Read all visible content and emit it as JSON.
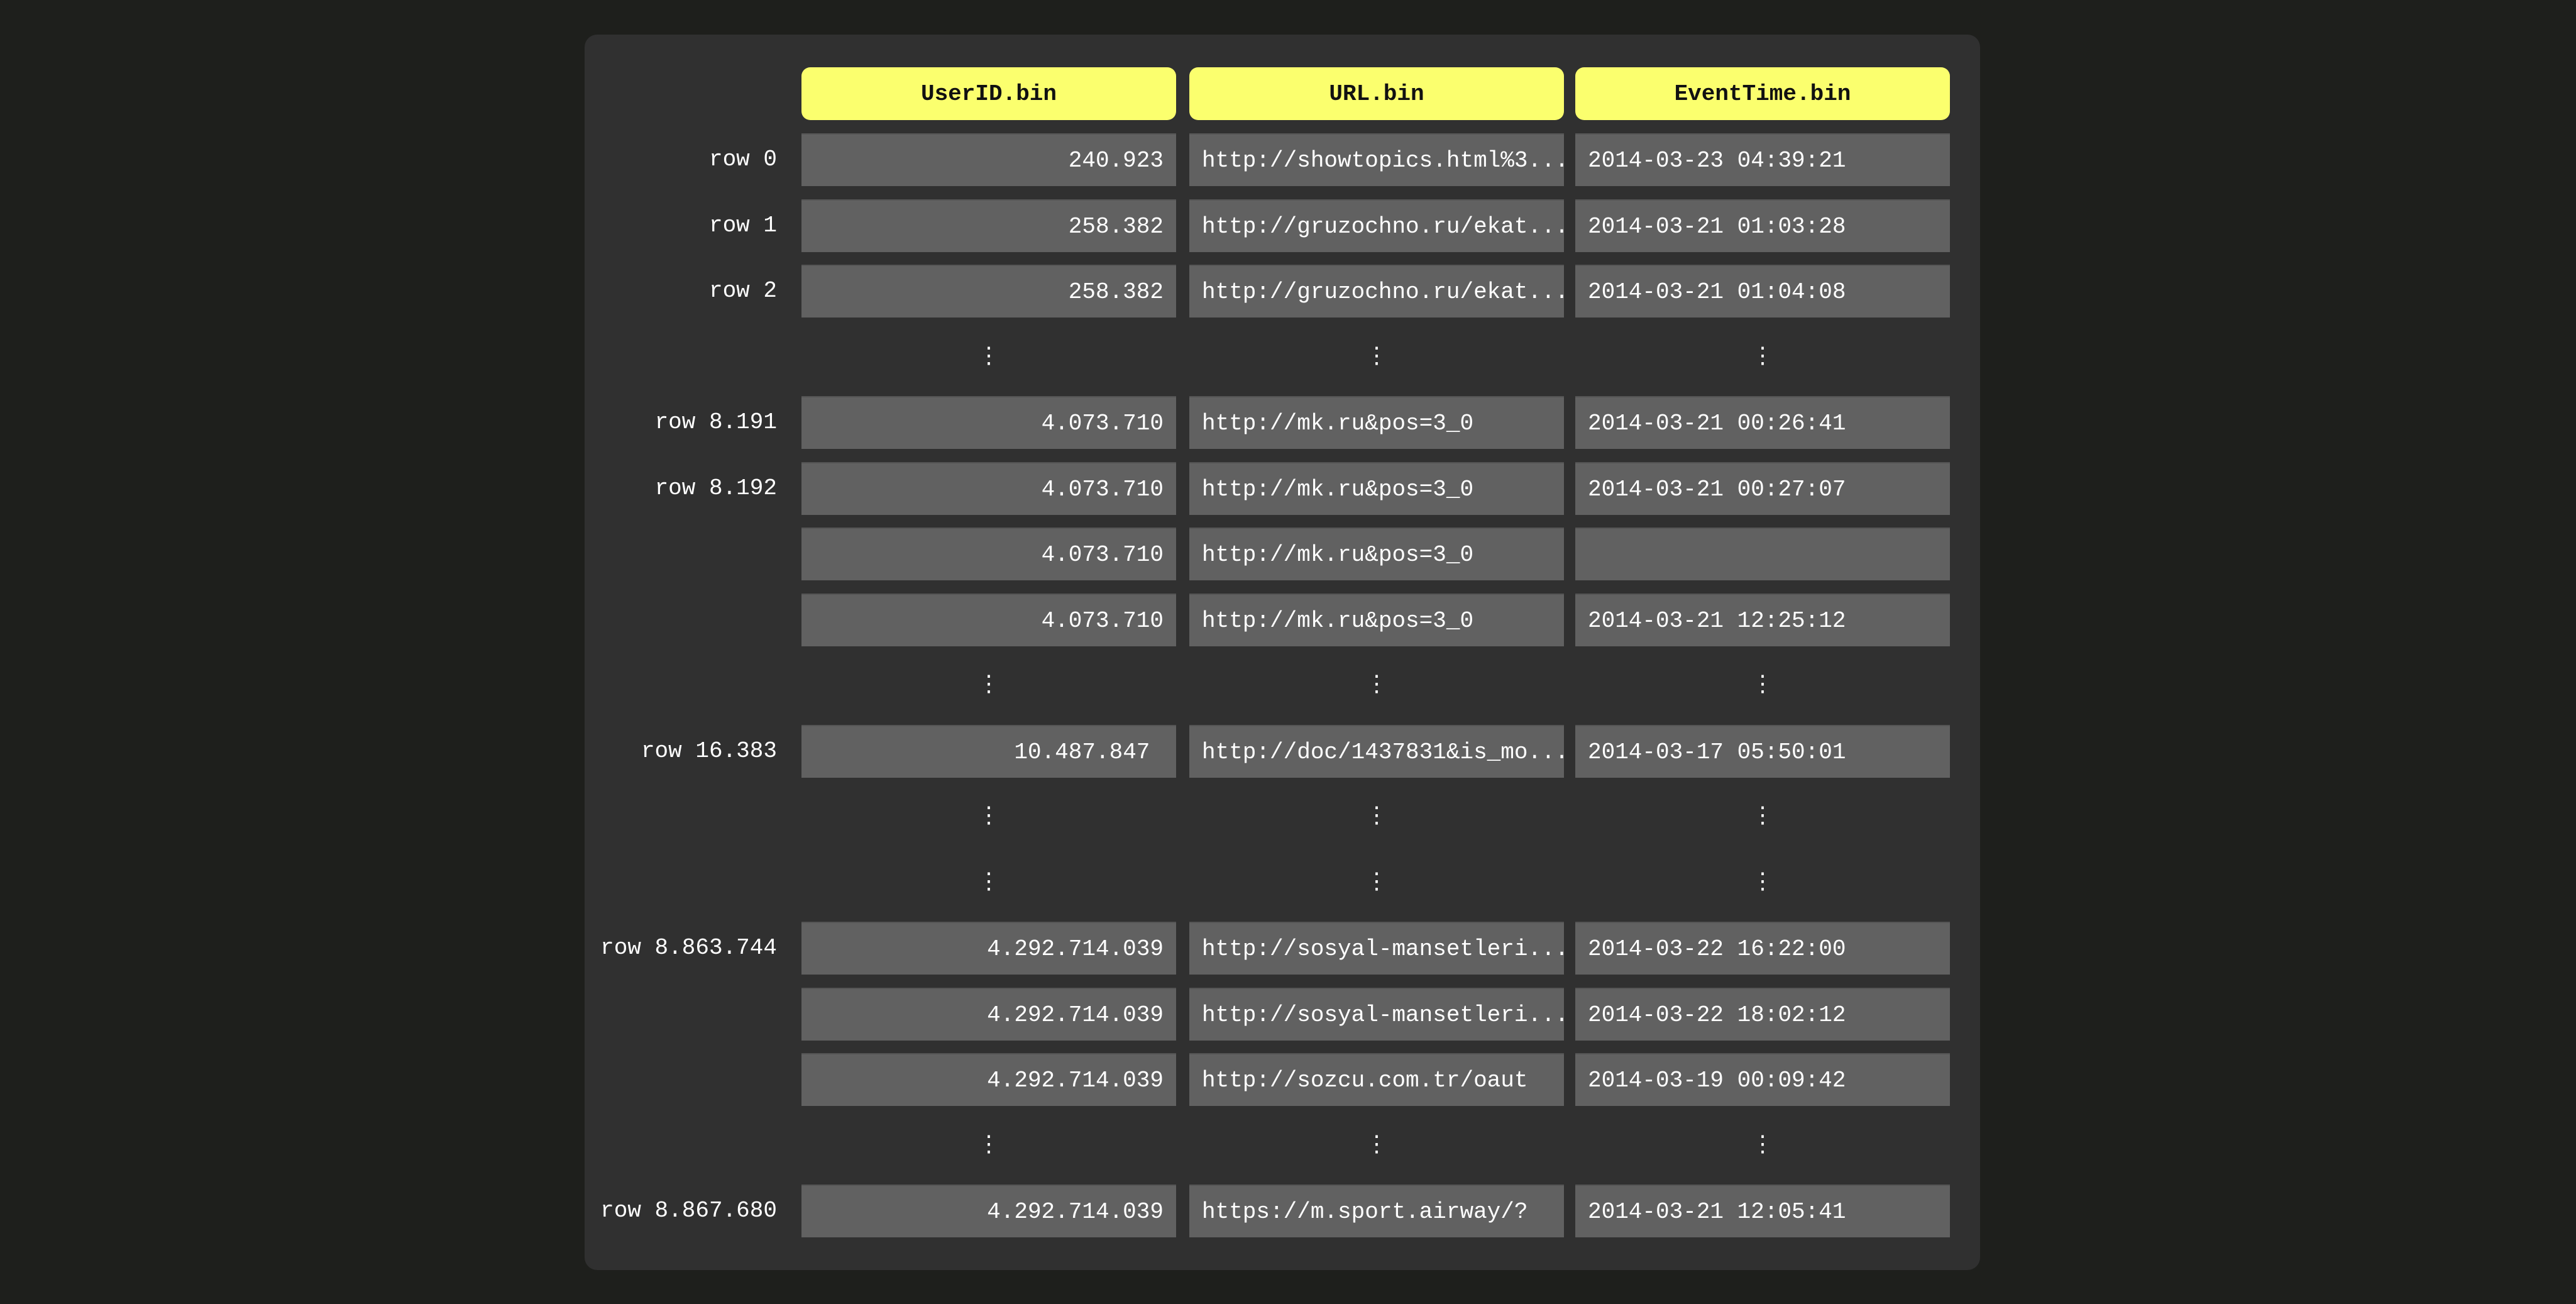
{
  "colors": {
    "background": "#1e1f1c",
    "panel": "#303030",
    "header": "#fbff6e",
    "cell": "#616161"
  },
  "columns": [
    "UserID.bin",
    "URL.bin",
    "EventTime.bin"
  ],
  "ellipsis": "⋮",
  "rows": [
    {
      "label": "row 0",
      "cells": [
        "240.923",
        "http://showtopics.html%3...",
        "2014-03-23 04:39:21"
      ]
    },
    {
      "label": "row 1",
      "cells": [
        "258.382",
        "http://gruzochno.ru/ekat...",
        "2014-03-21 01:03:28"
      ]
    },
    {
      "label": "row 2",
      "cells": [
        "258.382",
        "http://gruzochno.ru/ekat...",
        "2014-03-21 01:04:08"
      ]
    },
    {
      "ellipsis": true
    },
    {
      "label": "row 8.191",
      "cells": [
        "4.073.710",
        "http://mk.ru&pos=3_0",
        "2014-03-21 00:26:41"
      ]
    },
    {
      "label": "row 8.192",
      "cells": [
        "4.073.710",
        "http://mk.ru&pos=3_0",
        "2014-03-21 00:27:07"
      ]
    },
    {
      "label": "",
      "cells": [
        "4.073.710",
        "http://mk.ru&pos=3_0",
        ""
      ]
    },
    {
      "label": "",
      "cells": [
        "4.073.710",
        "http://mk.ru&pos=3_0",
        "2014-03-21 12:25:12"
      ]
    },
    {
      "ellipsis": true
    },
    {
      "label": "row 16.383",
      "cells": [
        "10.487.847 ",
        "http://doc/1437831&is_mo...",
        "2014-03-17 05:50:01"
      ]
    },
    {
      "ellipsis": true
    },
    {
      "ellipsis": true
    },
    {
      "label": "row 8.863.744",
      "cells": [
        "4.292.714.039",
        "http://sosyal-mansetleri...",
        "2014-03-22 16:22:00"
      ]
    },
    {
      "label": "",
      "cells": [
        "4.292.714.039",
        "http://sosyal-mansetleri...",
        "2014-03-22 18:02:12"
      ]
    },
    {
      "label": "",
      "cells": [
        "4.292.714.039",
        "http://sozcu.com.tr/oaut",
        "2014-03-19 00:09:42"
      ]
    },
    {
      "ellipsis": true
    },
    {
      "label": "row 8.867.680",
      "cells": [
        "4.292.714.039",
        "https://m.sport.airway/?",
        "2014-03-21 12:05:41"
      ]
    }
  ]
}
